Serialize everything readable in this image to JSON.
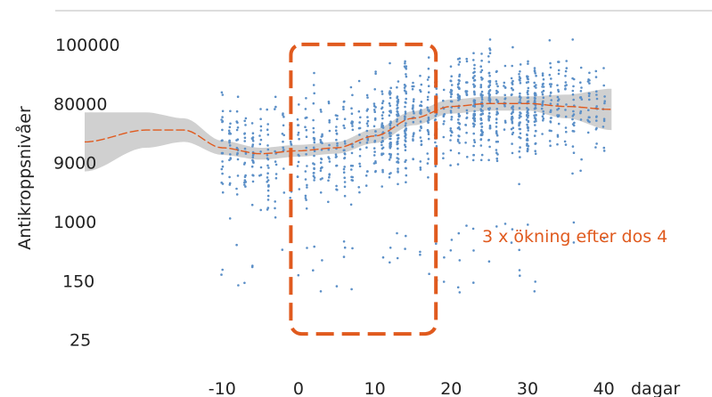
{
  "chart_data": {
    "type": "scatter",
    "title": "",
    "xlabel": "dagar",
    "ylabel": "Antikroppsnivåer",
    "x_ticks": [
      "-10",
      "0",
      "10",
      "20",
      "30",
      "40"
    ],
    "x_tick_values": [
      -10,
      0,
      10,
      20,
      30,
      40
    ],
    "y_ticks": [
      "100000",
      "80000",
      "9000",
      "1000",
      "150",
      "25"
    ],
    "y_tick_levels": [
      5,
      4,
      3,
      2,
      1,
      0
    ],
    "xlim": [
      -28,
      44
    ],
    "ylim": [
      -0.2,
      5.3
    ],
    "grid": false,
    "legend": "none",
    "series": [
      {
        "kind": "points",
        "color": "#5b8fc7",
        "x_range": [
          -10,
          40
        ],
        "points_per_column": [
          10,
          60
        ],
        "y_range": [
          0.8,
          5.1
        ]
      },
      {
        "kind": "smooth-fit",
        "color": "#e05a1e",
        "band_color": "#c8c8c8",
        "x": [
          -28,
          -20,
          -15,
          -10,
          -5,
          0,
          5,
          10,
          15,
          20,
          25,
          30,
          35,
          41
        ],
        "y": [
          3.35,
          3.55,
          3.55,
          3.25,
          3.15,
          3.2,
          3.25,
          3.45,
          3.75,
          3.95,
          4.0,
          4.0,
          3.95,
          3.9
        ],
        "band_halfwidth": [
          0.5,
          0.3,
          0.2,
          0.12,
          0.1,
          0.1,
          0.1,
          0.12,
          0.12,
          0.12,
          0.12,
          0.12,
          0.2,
          0.35
        ]
      }
    ],
    "highlight": {
      "x_range": [
        -1,
        18
      ],
      "y_range": [
        0.1,
        5.0
      ],
      "color": "#e05a1e",
      "label": "3 x ökning efter dos 4"
    }
  }
}
